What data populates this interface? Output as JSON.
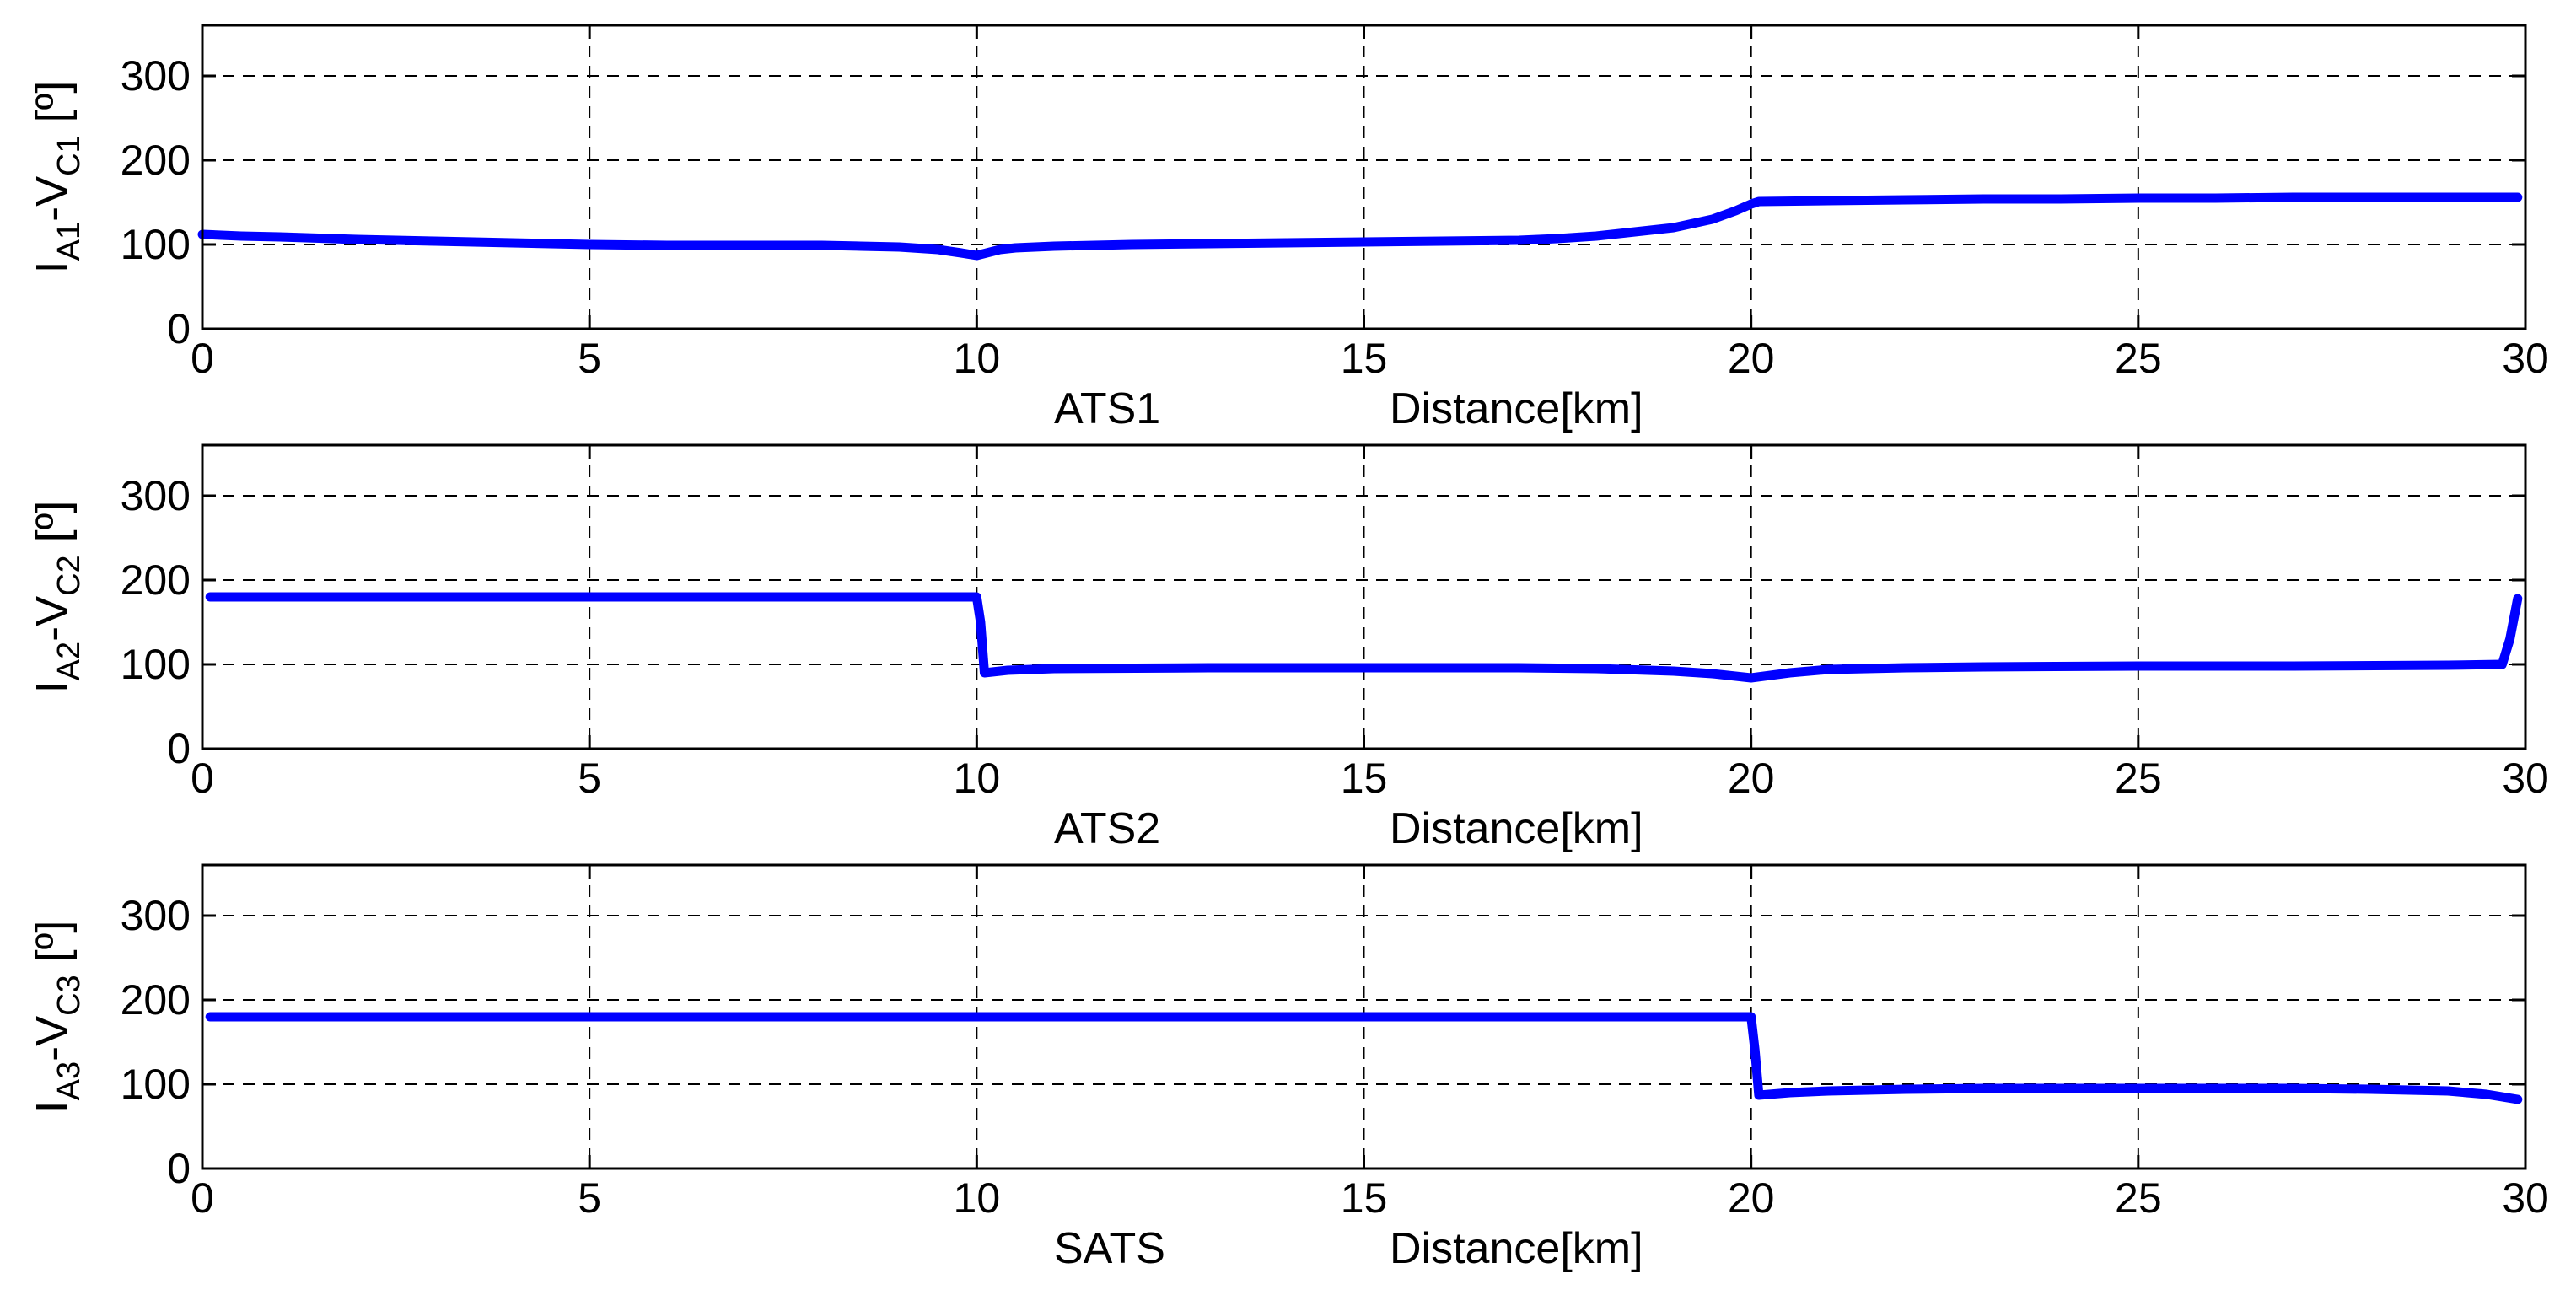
{
  "chart_data": [
    {
      "type": "line",
      "panel_label": "ATS1",
      "xlabel": "Distance[km]",
      "ylabel": {
        "pre": "I",
        "sub1": "A1",
        "mid": "-V",
        "sub2": "C1",
        "post": " [º]"
      },
      "xlim": [
        0,
        30
      ],
      "ylim": [
        0,
        360
      ],
      "xticks": [
        0,
        5,
        10,
        15,
        20,
        25,
        30
      ],
      "yticks": [
        0,
        100,
        200,
        300
      ],
      "grid": true,
      "color": "#0000ff",
      "series": [
        {
          "x": [
            0,
            0.5,
            1,
            2,
            3,
            4,
            5,
            6,
            7,
            8,
            8.5,
            9,
            9.5,
            9.8,
            10,
            10.3,
            10.5,
            11,
            12,
            13,
            14,
            15,
            16,
            17,
            17.5,
            18,
            18.5,
            19,
            19.5,
            19.8,
            20,
            20.1,
            21,
            22,
            23,
            24,
            25,
            26,
            27,
            28,
            29,
            29.9
          ],
          "y": [
            112,
            110,
            109,
            106,
            104,
            102,
            100,
            99,
            99,
            99,
            98,
            97,
            94,
            90,
            87,
            94,
            96,
            98,
            100,
            101,
            102,
            103,
            104,
            105,
            107,
            110,
            115,
            120,
            130,
            140,
            148,
            151,
            152,
            153,
            154,
            154,
            155,
            155,
            156,
            156,
            156,
            156
          ]
        }
      ]
    },
    {
      "type": "line",
      "panel_label": "ATS2",
      "xlabel": "Distance[km]",
      "ylabel": {
        "pre": "I",
        "sub1": "A2",
        "mid": "-V",
        "sub2": "C2",
        "post": " [º]"
      },
      "xlim": [
        0,
        30
      ],
      "ylim": [
        0,
        360
      ],
      "xticks": [
        0,
        5,
        10,
        15,
        20,
        25,
        30
      ],
      "yticks": [
        0,
        100,
        200,
        300
      ],
      "grid": true,
      "color": "#0000ff",
      "series": [
        {
          "x": [
            0.1,
            5,
            9,
            10,
            10.05,
            10.1,
            10.4,
            11,
            13,
            15,
            17,
            18,
            19,
            19.5,
            20,
            20.5,
            21,
            22,
            23,
            25,
            27,
            29,
            29.7,
            29.8,
            29.9
          ],
          "y": [
            180,
            180,
            180,
            180,
            150,
            90,
            93,
            95,
            96,
            96,
            96,
            95,
            92,
            89,
            84,
            90,
            94,
            96,
            97,
            98,
            98,
            99,
            100,
            130,
            178
          ]
        }
      ]
    },
    {
      "type": "line",
      "panel_label": "SATS",
      "xlabel": "Distance[km]",
      "ylabel": {
        "pre": "I",
        "sub1": "A3",
        "mid": "-V",
        "sub2": "C3",
        "post": " [º]"
      },
      "xlim": [
        0,
        30
      ],
      "ylim": [
        0,
        360
      ],
      "xticks": [
        0,
        5,
        10,
        15,
        20,
        25,
        30
      ],
      "yticks": [
        0,
        100,
        200,
        300
      ],
      "grid": true,
      "color": "#0000ff",
      "series": [
        {
          "x": [
            0.1,
            5,
            10,
            15,
            19,
            20,
            20.05,
            20.1,
            20.5,
            21,
            22,
            23,
            25,
            27,
            28,
            29,
            29.5,
            29.9
          ],
          "y": [
            180,
            180,
            180,
            180,
            180,
            180,
            140,
            87,
            90,
            92,
            94,
            95,
            95,
            95,
            94,
            92,
            88,
            82
          ]
        }
      ]
    }
  ]
}
